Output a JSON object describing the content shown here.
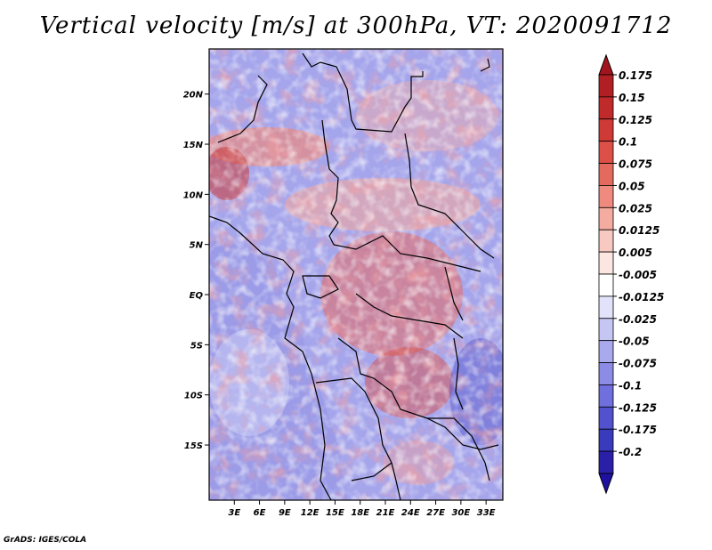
{
  "title": "Vertical velocity [m/s] at 300hPa, VT: 2020091712",
  "credit": "GrADS: IGES/COLA",
  "map": {
    "lat_range": [
      -20.5,
      24.5
    ],
    "lon_range": [
      0,
      35
    ],
    "lat_ticks": [
      {
        "value": 20,
        "label": "20N"
      },
      {
        "value": 15,
        "label": "15N"
      },
      {
        "value": 10,
        "label": "10N"
      },
      {
        "value": 5,
        "label": "5N"
      },
      {
        "value": 0,
        "label": "EQ"
      },
      {
        "value": -5,
        "label": "5S"
      },
      {
        "value": -10,
        "label": "10S"
      },
      {
        "value": -15,
        "label": "15S"
      }
    ],
    "lon_ticks": [
      {
        "value": 3,
        "label": "3E"
      },
      {
        "value": 6,
        "label": "6E"
      },
      {
        "value": 9,
        "label": "9E"
      },
      {
        "value": 12,
        "label": "12E"
      },
      {
        "value": 15,
        "label": "15E"
      },
      {
        "value": 18,
        "label": "18E"
      },
      {
        "value": 21,
        "label": "21E"
      },
      {
        "value": 24,
        "label": "24E"
      },
      {
        "value": 27,
        "label": "27E"
      },
      {
        "value": 30,
        "label": "30E"
      },
      {
        "value": 33,
        "label": "33E"
      }
    ]
  },
  "colorbar": {
    "levels": [
      {
        "label": "0.175",
        "color": "#b01f24"
      },
      {
        "label": "0.15",
        "color": "#c02a2a"
      },
      {
        "label": "0.125",
        "color": "#d03a36"
      },
      {
        "label": "0.1",
        "color": "#dc5048"
      },
      {
        "label": "0.075",
        "color": "#e56a5e"
      },
      {
        "label": "0.05",
        "color": "#ee8a7e"
      },
      {
        "label": "0.025",
        "color": "#f4aba0"
      },
      {
        "label": "0.0125",
        "color": "#f8c9c0"
      },
      {
        "label": "0.005",
        "color": "#fce6e1"
      },
      {
        "label": "-0.005",
        "color": "#ffffff"
      },
      {
        "label": "-0.0125",
        "color": "#e2e2fb"
      },
      {
        "label": "-0.025",
        "color": "#c6c6f4"
      },
      {
        "label": "-0.05",
        "color": "#a9a9ee"
      },
      {
        "label": "-0.075",
        "color": "#8c8ce6"
      },
      {
        "label": "-0.1",
        "color": "#6f6fdd"
      },
      {
        "label": "-0.125",
        "color": "#5252cf"
      },
      {
        "label": "-0.175",
        "color": "#3a3abd"
      },
      {
        "label": "-0.2",
        "color": "#2a20a8"
      }
    ],
    "top_cap_color": "#a3151e",
    "bottom_cap_color": "#2010a0"
  }
}
